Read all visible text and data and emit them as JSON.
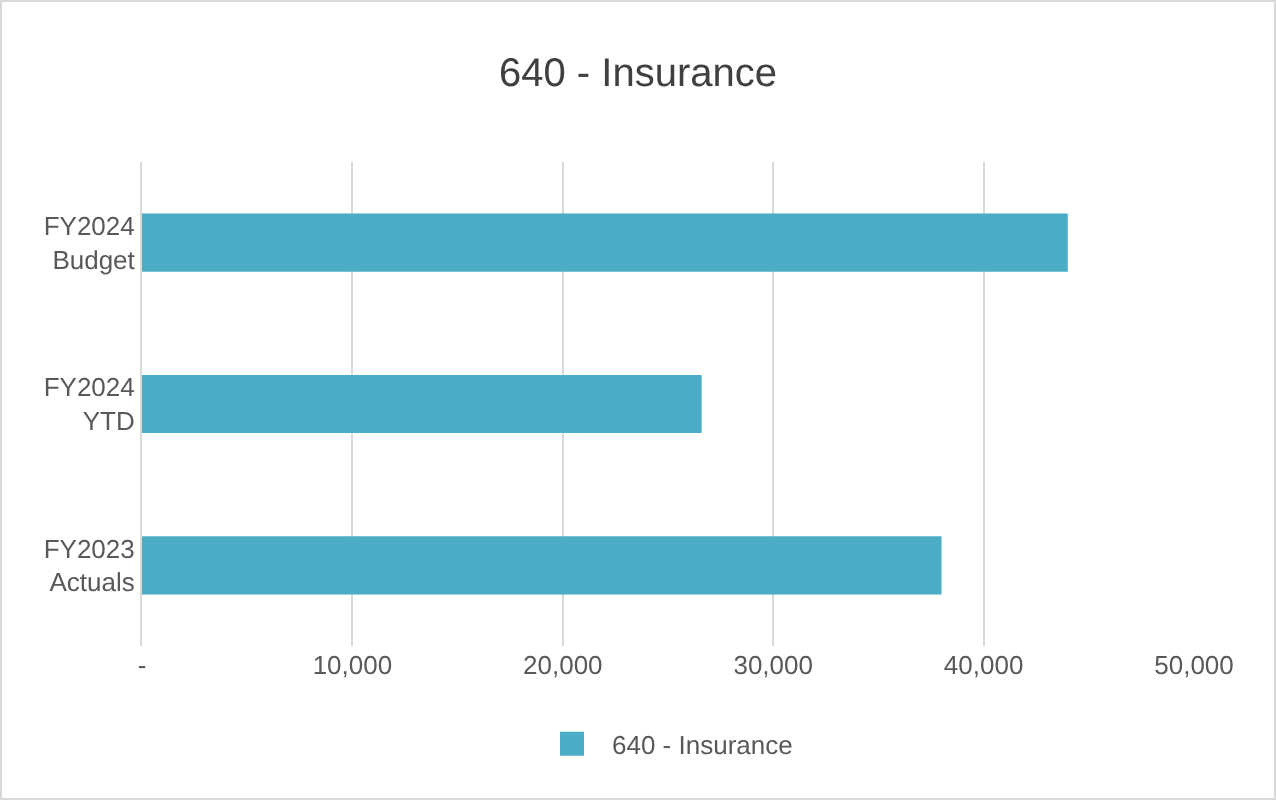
{
  "chart_data": {
    "type": "bar",
    "orientation": "horizontal",
    "title": "640 - Insurance",
    "categories": [
      "FY2024 Budget",
      "FY2024 YTD",
      "FY2023 Actuals"
    ],
    "series": [
      {
        "name": "640 - Insurance",
        "color": "#4bacc6",
        "values": [
          44000,
          26600,
          38000
        ]
      }
    ],
    "xlim": [
      0,
      50000
    ],
    "xticks": [
      {
        "value": 0,
        "label": "-"
      },
      {
        "value": 10000,
        "label": "10,000"
      },
      {
        "value": 20000,
        "label": "20,000"
      },
      {
        "value": 30000,
        "label": "30,000"
      },
      {
        "value": 40000,
        "label": "40,000"
      },
      {
        "value": 50000,
        "label": "50,000"
      }
    ],
    "grid": "x",
    "legend": "bottom"
  }
}
